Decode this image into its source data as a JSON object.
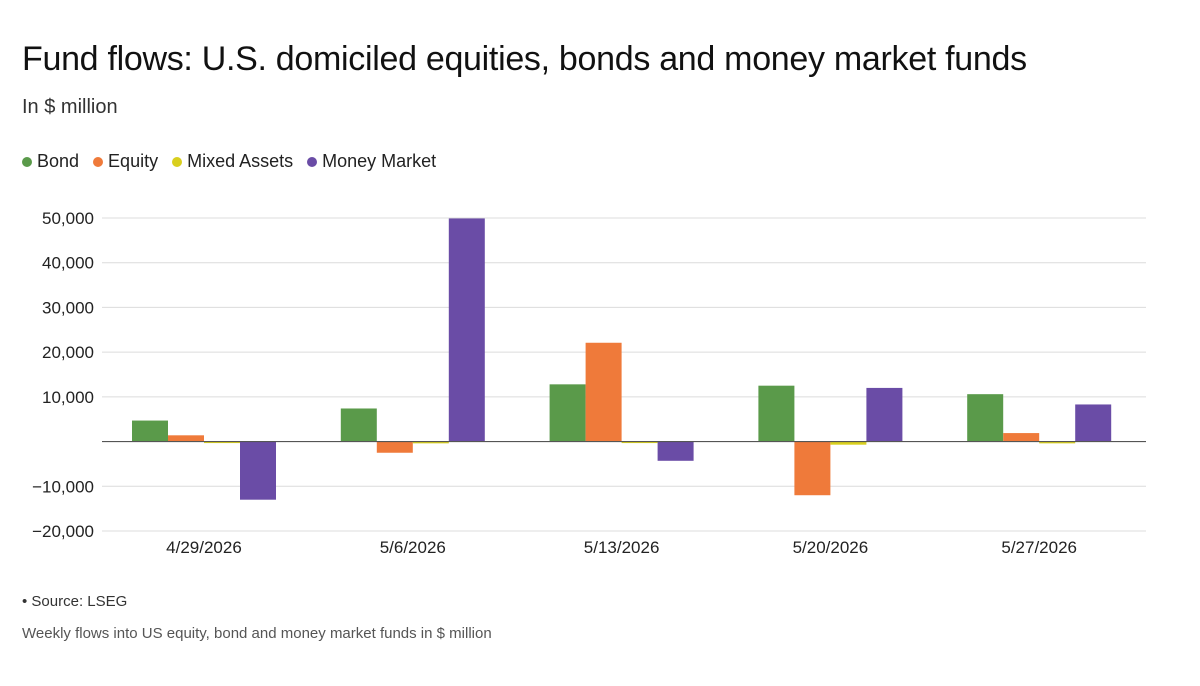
{
  "header": {
    "title": "Fund flows: U.S. domiciled equities, bonds and money market funds",
    "subtitle": "In $ million"
  },
  "legend": [
    {
      "label": "Bond",
      "color": "#5a9a4a"
    },
    {
      "label": "Equity",
      "color": "#ef7a3a"
    },
    {
      "label": "Mixed Assets",
      "color": "#d9cf1e"
    },
    {
      "label": "Money Market",
      "color": "#6a4ca6"
    }
  ],
  "footer": {
    "source": "• Source: LSEG",
    "caption": "Weekly flows into US equity, bond and money market funds in $ million"
  },
  "chart_data": {
    "type": "bar",
    "title": "Fund flows: U.S. domiciled equities, bonds and money market funds",
    "subtitle": "In $ million",
    "categories": [
      "4/29/2026",
      "5/6/2026",
      "5/13/2026",
      "5/20/2026",
      "5/27/2026"
    ],
    "series": [
      {
        "name": "Bond",
        "color": "#5a9a4a",
        "values": [
          4700,
          7400,
          12800,
          12500,
          10600
        ]
      },
      {
        "name": "Equity",
        "color": "#ef7a3a",
        "values": [
          1400,
          -2500,
          22100,
          -12000,
          1900
        ]
      },
      {
        "name": "Mixed Assets",
        "color": "#d9cf1e",
        "values": [
          -100,
          -400,
          -300,
          -700,
          -400
        ]
      },
      {
        "name": "Money Market",
        "color": "#6a4ca6",
        "values": [
          -13000,
          49900,
          -4300,
          12000,
          8300
        ]
      }
    ],
    "ylim": [
      -20000,
      50000
    ],
    "yticks": [
      50000,
      40000,
      30000,
      20000,
      10000,
      -10000,
      -20000
    ],
    "ytick_labels": [
      "50,000",
      "40,000",
      "30,000",
      "20,000",
      "10,000",
      "−10,000",
      "−20,000"
    ],
    "grid": true,
    "legend_position": "top-left",
    "xlabel": "",
    "ylabel": ""
  }
}
